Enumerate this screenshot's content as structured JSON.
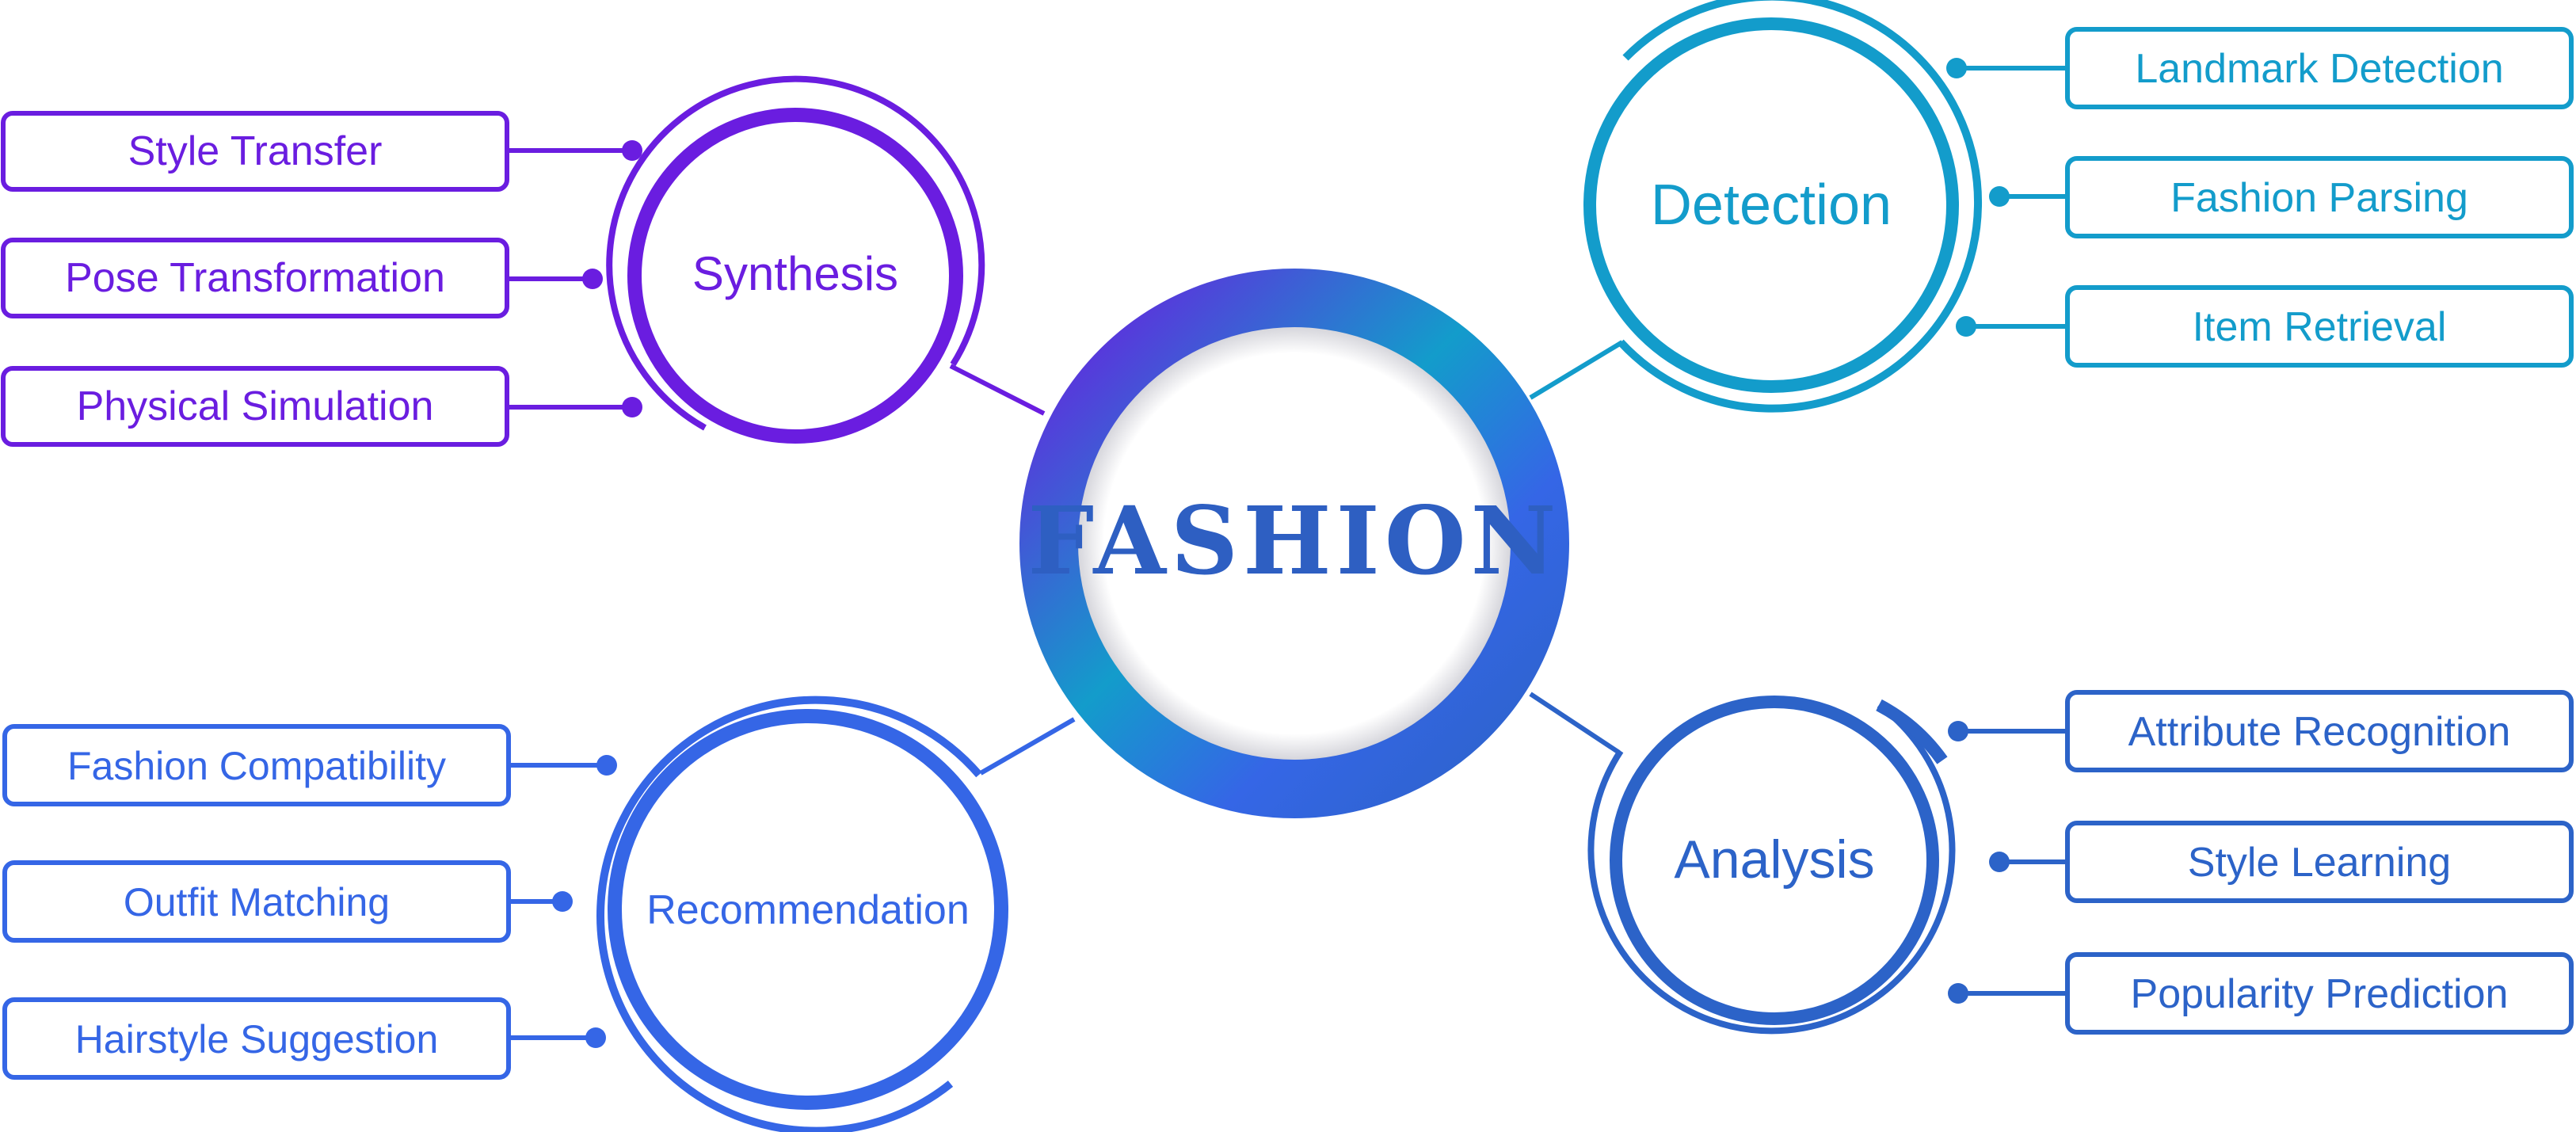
{
  "colors": {
    "synthesis": "#6a1de0",
    "detection": "#139ccb",
    "recommendation": "#3566e6",
    "analysis": "#2c63c8",
    "center_text": "#2e5fc2"
  },
  "center": {
    "title": "FASHION"
  },
  "synthesis": {
    "title": "Synthesis",
    "items": [
      "Style Transfer",
      "Pose Transformation",
      "Physical Simulation"
    ]
  },
  "detection": {
    "title": "Detection",
    "items": [
      "Landmark Detection",
      "Fashion Parsing",
      "Item Retrieval"
    ]
  },
  "recommendation": {
    "title": "Recommendation",
    "items": [
      "Fashion Compatibility",
      "Outfit Matching",
      "Hairstyle Suggestion"
    ]
  },
  "analysis": {
    "title": "Analysis",
    "items": [
      "Attribute Recognition",
      "Style Learning",
      "Popularity Prediction"
    ]
  }
}
